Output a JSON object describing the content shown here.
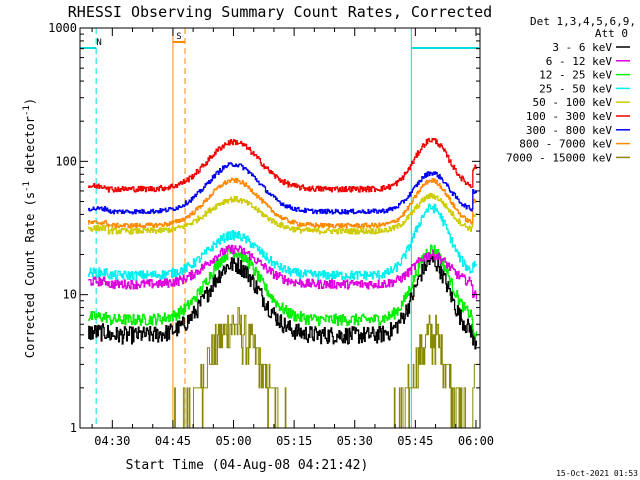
{
  "chart_data": {
    "type": "line",
    "title": "RHESSI Observing Summary Count Rates, Corrected",
    "xlabel": "Start Time (04-Aug-08 04:21:42)",
    "ylabel_main": "Corrected Count Rate (s",
    "ylabel_sup1": "-1",
    "ylabel_mid": " detector",
    "ylabel_sup2": "-1",
    "ylabel_end": ")",
    "yscale": "log",
    "ylim": [
      1,
      1000
    ],
    "xlim_min": [
      262,
      361
    ],
    "y_ticks": [
      "1",
      "10",
      "100",
      "1000"
    ],
    "x_ticks": [
      {
        "t": 270,
        "label": "04:30"
      },
      {
        "t": 285,
        "label": "04:45"
      },
      {
        "t": 300,
        "label": "05:00"
      },
      {
        "t": 315,
        "label": "05:15"
      },
      {
        "t": 330,
        "label": "05:30"
      },
      {
        "t": 345,
        "label": "05:45"
      },
      {
        "t": 360,
        "label": "06:00"
      }
    ],
    "legend_header": [
      "Det 1,3,4,5,6,9,",
      "Att 0"
    ],
    "legend_position": "right",
    "series": [
      {
        "name": "3 - 6 keV",
        "color": "#000000",
        "base": 5.0,
        "peak1": 17,
        "peak2": 18,
        "noise": 0.15,
        "drop": 4.5
      },
      {
        "name": "6 - 12 keV",
        "color": "#dd00dd",
        "base": 12,
        "peak1": 22,
        "peak2": 20,
        "noise": 0.08,
        "drop": 10
      },
      {
        "name": "12 - 25 keV",
        "color": "#00ee00",
        "base": 6.5,
        "peak1": 21,
        "peak2": 22,
        "noise": 0.1,
        "drop": 5
      },
      {
        "name": "25 - 50 keV",
        "color": "#00eeee",
        "base": 14,
        "peak1": 28,
        "peak2": 45,
        "noise": 0.08,
        "drop": 17
      },
      {
        "name": "50 - 100 keV",
        "color": "#cccc00",
        "base": 30,
        "peak1": 52,
        "peak2": 55,
        "noise": 0.05,
        "drop": 40
      },
      {
        "name": "100 - 300 keV",
        "color": "#ee0000",
        "base": 62,
        "peak1": 140,
        "peak2": 145,
        "noise": 0.05,
        "drop": 90
      },
      {
        "name": "300 - 800 keV",
        "color": "#0000ee",
        "base": 42,
        "peak1": 95,
        "peak2": 82,
        "noise": 0.04,
        "drop": 60
      },
      {
        "name": "800 - 7000 keV",
        "color": "#ff8800",
        "base": 33,
        "peak1": 72,
        "peak2": 72,
        "noise": 0.04,
        "drop": 50
      },
      {
        "name": "7000 - 15000 keV",
        "color": "#888800",
        "base": 1.0,
        "peak1": 6,
        "peak2": 5,
        "noise": 0.0,
        "drop": 2.5
      }
    ],
    "intervals": [
      {
        "label": "N",
        "color": "#00dddd",
        "start": 262,
        "end": 266
      },
      {
        "label": "S",
        "color": "#ff8800",
        "start": 285,
        "end": 288
      },
      {
        "label": "",
        "color": "#00dddd",
        "start": 344,
        "end": 361
      }
    ],
    "peak1_time": 300,
    "peak2_time": 349,
    "width1": 9,
    "width2": 6
  },
  "footer": {
    "timestamp": "15-Oct-2021 01:53"
  },
  "colors": {
    "background": "#ffffff",
    "axis": "#000000"
  }
}
